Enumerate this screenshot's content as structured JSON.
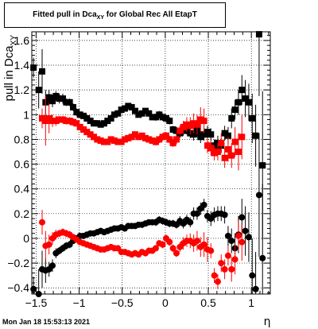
{
  "title": {
    "main": "Fitted pull in Dca",
    "sub": "XY",
    "rest": " for Global Rec All EtapT"
  },
  "date_stamp": "Mon Jan 18 15:53:13 2021",
  "colors": {
    "upper_black": "#000000",
    "upper_red": "#ff0000",
    "axes": "#000000",
    "grid": "#000000"
  },
  "chart_data": {
    "type": "scatter",
    "title": "Fitted pull in DcaXY for Global Rec All EtapT",
    "xlabel": "η",
    "ylabel": "pull in DcaXY",
    "xlim": [
      -1.55,
      1.22
    ],
    "ylim": [
      -0.45,
      1.67
    ],
    "grid": true,
    "x_ticks": [
      -1.5,
      -1,
      -0.5,
      0,
      0.5,
      1
    ],
    "x_tick_labels": [
      "−1.5",
      "−1",
      "−0.5",
      "0",
      "0.5",
      "1"
    ],
    "y_ticks": [
      -0.4,
      -0.2,
      0,
      0.2,
      0.4,
      0.6,
      0.8,
      1,
      1.2,
      1.4,
      1.6
    ],
    "y_tick_labels": [
      "−0.4",
      "−0.2",
      "0",
      "0.2",
      "0.4",
      "0.6",
      "0.8",
      "1",
      "1.2",
      "1.4",
      "1.6"
    ],
    "series": [
      {
        "name": "",
        "color": "#000000",
        "marker": "square",
        "x": [
          -1.53,
          -1.47,
          -1.43,
          -1.39,
          -1.35,
          -1.31,
          -1.27,
          -1.23,
          -1.19,
          -1.15,
          -1.11,
          -1.07,
          -1.03,
          -0.99,
          -0.95,
          -0.91,
          -0.87,
          -0.83,
          -0.79,
          -0.75,
          -0.71,
          -0.67,
          -0.63,
          -0.59,
          -0.55,
          -0.51,
          -0.47,
          -0.43,
          -0.39,
          -0.35,
          -0.31,
          -0.27,
          -0.23,
          -0.19,
          -0.15,
          -0.11,
          -0.07,
          -0.03,
          0.01,
          0.05,
          0.09,
          0.13,
          0.17,
          0.21,
          0.25,
          0.29,
          0.33,
          0.37,
          0.41,
          0.45,
          0.49,
          0.53,
          0.57,
          0.61,
          0.65,
          0.69,
          0.73,
          0.77,
          0.81,
          0.85,
          0.89,
          0.93,
          0.97,
          1.01,
          1.05,
          1.09,
          1.13
        ],
        "y": [
          1.38,
          1.2,
          1.35,
          1.1,
          1.14,
          1.11,
          1.15,
          1.13,
          1.13,
          1.1,
          1.1,
          1.06,
          1.02,
          1.0,
          0.99,
          0.97,
          0.95,
          0.93,
          0.93,
          0.92,
          0.93,
          0.95,
          0.97,
          1.0,
          1.01,
          1.04,
          1.05,
          1.07,
          1.06,
          1.03,
          1.0,
          1.01,
          1.03,
          1.01,
          0.98,
          0.98,
          1.0,
          0.98,
          0.97,
          0.95,
          0.88,
          0.87,
          0.85,
          0.87,
          0.88,
          0.85,
          0.84,
          0.87,
          0.82,
          0.84,
          0.86,
          0.84,
          0.75,
          0.77,
          0.75,
          0.85,
          0.83,
          0.97,
          1.04,
          1.1,
          1.2,
          1.13,
          1.1,
          0.97,
          0.83,
          1.65,
          0.59
        ],
        "err": [
          0.08,
          0.15,
          0.18,
          0.1,
          0.06,
          0.05,
          0.04,
          0.04,
          0.04,
          0.03,
          0.03,
          0.03,
          0.03,
          0.02,
          0.02,
          0.02,
          0.02,
          0.02,
          0.02,
          0.02,
          0.02,
          0.02,
          0.02,
          0.02,
          0.02,
          0.02,
          0.02,
          0.02,
          0.02,
          0.02,
          0.02,
          0.02,
          0.02,
          0.02,
          0.02,
          0.03,
          0.03,
          0.03,
          0.03,
          0.03,
          0.03,
          0.03,
          0.04,
          0.04,
          0.04,
          0.04,
          0.05,
          0.05,
          0.05,
          0.05,
          0.05,
          0.05,
          0.05,
          0.06,
          0.06,
          0.06,
          0.07,
          0.08,
          0.08,
          0.1,
          0.12,
          0.15,
          0.15,
          0.2,
          0.25,
          0.5,
          0.6
        ]
      },
      {
        "name": "",
        "color": "#ff0000",
        "marker": "square",
        "x": [
          -1.43,
          -1.39,
          -1.35,
          -1.31,
          -1.27,
          -1.23,
          -1.19,
          -1.15,
          -1.11,
          -1.07,
          -1.03,
          -0.99,
          -0.95,
          -0.91,
          -0.87,
          -0.83,
          -0.79,
          -0.75,
          -0.71,
          -0.67,
          -0.63,
          -0.59,
          -0.55,
          -0.51,
          -0.47,
          -0.43,
          -0.39,
          -0.35,
          -0.31,
          -0.27,
          -0.23,
          -0.19,
          -0.15,
          -0.11,
          -0.07,
          -0.03,
          0.01,
          0.05,
          0.09,
          0.13,
          0.17,
          0.21,
          0.25,
          0.29,
          0.33,
          0.37,
          0.41,
          0.45,
          0.49,
          0.53,
          0.57,
          0.61,
          0.65,
          0.69,
          0.73,
          0.77,
          0.81,
          0.85,
          0.89
        ],
        "y": [
          0.97,
          0.95,
          0.97,
          0.95,
          0.95,
          0.96,
          0.96,
          0.95,
          0.95,
          0.94,
          0.93,
          0.9,
          0.88,
          0.86,
          0.84,
          0.82,
          0.8,
          0.79,
          0.78,
          0.78,
          0.8,
          0.79,
          0.78,
          0.78,
          0.8,
          0.81,
          0.82,
          0.84,
          0.82,
          0.83,
          0.81,
          0.8,
          0.79,
          0.78,
          0.8,
          0.82,
          0.83,
          0.8,
          0.77,
          0.8,
          0.87,
          0.9,
          0.92,
          0.91,
          0.93,
          0.92,
          0.96,
          0.95,
          0.75,
          0.73,
          0.69,
          0.7,
          0.77,
          0.65,
          0.72,
          0.67,
          0.78,
          0.7,
          0.82
        ],
        "err": [
          0.08,
          0.2,
          0.12,
          0.05,
          0.04,
          0.03,
          0.03,
          0.03,
          0.03,
          0.03,
          0.02,
          0.02,
          0.02,
          0.02,
          0.02,
          0.02,
          0.02,
          0.02,
          0.02,
          0.02,
          0.02,
          0.02,
          0.02,
          0.02,
          0.02,
          0.02,
          0.02,
          0.02,
          0.02,
          0.02,
          0.02,
          0.02,
          0.02,
          0.03,
          0.03,
          0.03,
          0.03,
          0.03,
          0.03,
          0.04,
          0.04,
          0.05,
          0.06,
          0.07,
          0.08,
          0.08,
          0.1,
          0.1,
          0.06,
          0.06,
          0.06,
          0.07,
          0.08,
          0.08,
          0.1,
          0.1,
          0.12,
          0.15,
          0.18
        ]
      },
      {
        "name": "",
        "color": "#000000",
        "marker": "circle",
        "x": [
          -1.53,
          -1.47,
          -1.43,
          -1.39,
          -1.35,
          -1.31,
          -1.27,
          -1.23,
          -1.19,
          -1.15,
          -1.11,
          -1.07,
          -1.03,
          -0.99,
          -0.95,
          -0.91,
          -0.87,
          -0.83,
          -0.79,
          -0.75,
          -0.71,
          -0.67,
          -0.63,
          -0.59,
          -0.55,
          -0.51,
          -0.47,
          -0.43,
          -0.39,
          -0.35,
          -0.31,
          -0.27,
          -0.23,
          -0.19,
          -0.15,
          -0.11,
          -0.07,
          -0.03,
          0.01,
          0.05,
          0.09,
          0.13,
          0.17,
          0.21,
          0.25,
          0.29,
          0.33,
          0.37,
          0.41,
          0.45,
          0.49,
          0.53,
          0.57,
          0.61,
          0.65,
          0.69,
          0.73,
          0.77,
          0.81,
          0.85,
          0.89,
          0.93,
          0.97,
          1.01,
          1.05,
          1.09,
          1.13
        ],
        "y": [
          -0.41,
          -0.45,
          -0.25,
          -0.26,
          -0.25,
          -0.22,
          -0.12,
          -0.1,
          -0.08,
          -0.06,
          -0.05,
          -0.02,
          0.0,
          0.02,
          0.02,
          0.03,
          0.04,
          0.04,
          0.05,
          0.06,
          0.05,
          0.06,
          0.07,
          0.08,
          0.08,
          0.09,
          0.08,
          0.1,
          0.1,
          0.1,
          0.11,
          0.11,
          0.12,
          0.13,
          0.13,
          0.13,
          0.15,
          0.14,
          0.13,
          0.12,
          0.12,
          0.11,
          0.14,
          0.12,
          0.15,
          0.13,
          0.2,
          0.2,
          0.24,
          0.27,
          0.18,
          0.16,
          0.19,
          0.2,
          0.2,
          0.19,
          0.02,
          -0.02,
          -0.08,
          0.03,
          0.17,
          0.06,
          0.01,
          -0.3,
          -0.41,
          0.35,
          -0.16
        ],
        "err": [
          0.1,
          0.2,
          0.15,
          0.1,
          0.06,
          0.05,
          0.04,
          0.03,
          0.03,
          0.03,
          0.03,
          0.02,
          0.02,
          0.02,
          0.02,
          0.02,
          0.02,
          0.02,
          0.02,
          0.02,
          0.02,
          0.02,
          0.02,
          0.02,
          0.02,
          0.02,
          0.02,
          0.02,
          0.02,
          0.02,
          0.02,
          0.02,
          0.02,
          0.02,
          0.02,
          0.03,
          0.03,
          0.03,
          0.03,
          0.03,
          0.03,
          0.03,
          0.04,
          0.04,
          0.04,
          0.04,
          0.05,
          0.05,
          0.05,
          0.05,
          0.05,
          0.06,
          0.06,
          0.06,
          0.06,
          0.07,
          0.08,
          0.1,
          0.12,
          0.15,
          0.15,
          0.2,
          0.2,
          0.3,
          0.3,
          0.5,
          0.6
        ]
      },
      {
        "name": "",
        "color": "#ff0000",
        "marker": "circle",
        "x": [
          -1.43,
          -1.39,
          -1.35,
          -1.31,
          -1.27,
          -1.23,
          -1.19,
          -1.15,
          -1.11,
          -1.07,
          -1.03,
          -0.99,
          -0.95,
          -0.91,
          -0.87,
          -0.83,
          -0.79,
          -0.75,
          -0.71,
          -0.67,
          -0.63,
          -0.59,
          -0.55,
          -0.51,
          -0.47,
          -0.43,
          -0.39,
          -0.35,
          -0.31,
          -0.27,
          -0.23,
          -0.19,
          -0.15,
          -0.11,
          -0.07,
          -0.03,
          0.01,
          0.05,
          0.09,
          0.13,
          0.17,
          0.21,
          0.25,
          0.29,
          0.33,
          0.37,
          0.41,
          0.45,
          0.49,
          0.53,
          0.57,
          0.61,
          0.65,
          0.69,
          0.73,
          0.77,
          0.81,
          0.85,
          0.89
        ],
        "y": [
          0.13,
          -0.06,
          -0.05,
          0.0,
          0.03,
          0.04,
          0.05,
          0.04,
          0.03,
          0.01,
          -0.01,
          -0.03,
          -0.04,
          -0.05,
          -0.06,
          -0.07,
          -0.08,
          -0.09,
          -0.09,
          -0.08,
          -0.07,
          -0.08,
          -0.08,
          -0.11,
          -0.11,
          -0.12,
          -0.13,
          -0.12,
          -0.13,
          -0.11,
          -0.12,
          -0.1,
          -0.1,
          -0.08,
          -0.04,
          -0.05,
          0.0,
          -0.03,
          -0.08,
          -0.12,
          -0.07,
          -0.04,
          -0.02,
          -0.02,
          -0.04,
          -0.02,
          -0.07,
          -0.05,
          -0.09,
          -0.1,
          -0.3,
          -0.35,
          -0.2,
          -0.25,
          -0.14,
          -0.25,
          -0.17,
          0.02,
          -0.03
        ],
        "err": [
          0.1,
          0.12,
          0.08,
          0.05,
          0.04,
          0.03,
          0.03,
          0.03,
          0.03,
          0.02,
          0.02,
          0.02,
          0.02,
          0.02,
          0.02,
          0.02,
          0.02,
          0.02,
          0.02,
          0.02,
          0.02,
          0.02,
          0.02,
          0.02,
          0.02,
          0.02,
          0.02,
          0.02,
          0.02,
          0.02,
          0.02,
          0.02,
          0.02,
          0.02,
          0.02,
          0.03,
          0.03,
          0.03,
          0.03,
          0.03,
          0.04,
          0.05,
          0.05,
          0.06,
          0.07,
          0.08,
          0.08,
          0.1,
          0.1,
          0.06,
          0.06,
          0.06,
          0.07,
          0.08,
          0.08,
          0.1,
          0.12,
          0.12,
          0.15
        ]
      }
    ]
  }
}
